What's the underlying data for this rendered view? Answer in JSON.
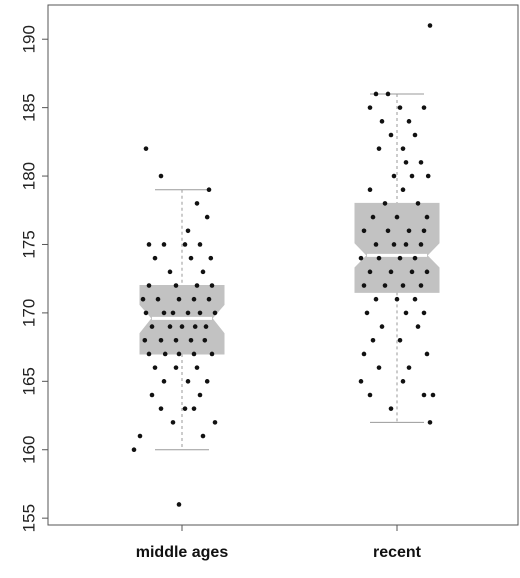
{
  "colors": {
    "box_fill": "#c2c2c2",
    "whisker": "#9a9a9a",
    "median": "#ffffff",
    "point": "#111111",
    "axis": "#555555"
  },
  "chart_data": {
    "type": "box",
    "title": "",
    "xlabel": "",
    "ylabel": "",
    "ylim": [
      154.5,
      192.5
    ],
    "yticks": [
      155,
      160,
      165,
      170,
      175,
      180,
      185,
      190
    ],
    "notched": true,
    "jittered_points_overlay": true,
    "categories": [
      "middle ages",
      "recent"
    ],
    "boxes": [
      {
        "category": "middle ages",
        "whisker_low": 160,
        "q1": 167,
        "median": 169.6,
        "q3": 172,
        "whisker_high": 179,
        "notch_low": 168.5,
        "notch_high": 170.6,
        "outliers": [
          156,
          180,
          182
        ],
        "points": [
          [
            -0.6,
            182
          ],
          [
            -0.35,
            180
          ],
          [
            0.45,
            179
          ],
          [
            0.42,
            177
          ],
          [
            0.25,
            178
          ],
          [
            0.1,
            176
          ],
          [
            -0.55,
            175
          ],
          [
            -0.3,
            175
          ],
          [
            0.05,
            175
          ],
          [
            0.3,
            175
          ],
          [
            -0.45,
            174
          ],
          [
            0.15,
            174
          ],
          [
            0.48,
            174
          ],
          [
            -0.2,
            173
          ],
          [
            0.35,
            173
          ],
          [
            -0.55,
            172
          ],
          [
            -0.1,
            172
          ],
          [
            0.25,
            172
          ],
          [
            0.5,
            172
          ],
          [
            -0.65,
            171
          ],
          [
            -0.4,
            171
          ],
          [
            -0.05,
            171
          ],
          [
            0.2,
            171
          ],
          [
            0.45,
            171
          ],
          [
            -0.6,
            170
          ],
          [
            -0.3,
            170
          ],
          [
            -0.15,
            170
          ],
          [
            0.1,
            170
          ],
          [
            0.3,
            170
          ],
          [
            0.55,
            170
          ],
          [
            -0.5,
            169
          ],
          [
            -0.2,
            169
          ],
          [
            0.0,
            169
          ],
          [
            0.22,
            169
          ],
          [
            0.4,
            169
          ],
          [
            -0.62,
            168
          ],
          [
            -0.35,
            168
          ],
          [
            -0.1,
            168
          ],
          [
            0.15,
            168
          ],
          [
            0.38,
            168
          ],
          [
            -0.55,
            167
          ],
          [
            -0.28,
            167
          ],
          [
            -0.05,
            167
          ],
          [
            0.2,
            167
          ],
          [
            0.5,
            167
          ],
          [
            -0.45,
            166
          ],
          [
            -0.1,
            166
          ],
          [
            0.25,
            166
          ],
          [
            -0.3,
            165
          ],
          [
            0.1,
            165
          ],
          [
            0.42,
            165
          ],
          [
            -0.5,
            164
          ],
          [
            0.3,
            164
          ],
          [
            -0.35,
            163
          ],
          [
            0.05,
            163
          ],
          [
            0.2,
            163
          ],
          [
            -0.15,
            162
          ],
          [
            0.55,
            162
          ],
          [
            -0.7,
            161
          ],
          [
            0.35,
            161
          ],
          [
            -0.8,
            160
          ],
          [
            -0.05,
            156
          ]
        ]
      },
      {
        "category": "recent",
        "whisker_low": 162,
        "q1": 171.5,
        "median": 174.2,
        "q3": 178,
        "whisker_high": 186,
        "notch_low": 173.3,
        "notch_high": 175.1,
        "outliers": [
          191
        ],
        "points": [
          [
            0.55,
            191
          ],
          [
            -0.35,
            186
          ],
          [
            -0.15,
            186
          ],
          [
            -0.45,
            185
          ],
          [
            0.45,
            185
          ],
          [
            0.05,
            185
          ],
          [
            -0.25,
            184
          ],
          [
            0.2,
            184
          ],
          [
            -0.1,
            183
          ],
          [
            0.3,
            183
          ],
          [
            0.1,
            182
          ],
          [
            -0.3,
            182
          ],
          [
            0.15,
            181
          ],
          [
            0.4,
            181
          ],
          [
            -0.05,
            180
          ],
          [
            0.25,
            180
          ],
          [
            0.52,
            180
          ],
          [
            -0.45,
            179
          ],
          [
            0.1,
            179
          ],
          [
            -0.2,
            178
          ],
          [
            0.35,
            178
          ],
          [
            -0.4,
            177
          ],
          [
            0.0,
            177
          ],
          [
            0.5,
            177
          ],
          [
            -0.55,
            176
          ],
          [
            -0.15,
            176
          ],
          [
            0.2,
            176
          ],
          [
            0.45,
            176
          ],
          [
            -0.35,
            175
          ],
          [
            -0.05,
            175
          ],
          [
            0.15,
            175
          ],
          [
            0.4,
            175
          ],
          [
            -0.6,
            174
          ],
          [
            -0.3,
            174
          ],
          [
            0.05,
            174
          ],
          [
            0.3,
            174
          ],
          [
            -0.45,
            173
          ],
          [
            -0.1,
            173
          ],
          [
            0.25,
            173
          ],
          [
            0.5,
            173
          ],
          [
            -0.55,
            172
          ],
          [
            -0.2,
            172
          ],
          [
            0.1,
            172
          ],
          [
            0.4,
            172
          ],
          [
            -0.35,
            171
          ],
          [
            0.0,
            171
          ],
          [
            0.3,
            171
          ],
          [
            -0.5,
            170
          ],
          [
            0.15,
            170
          ],
          [
            0.45,
            170
          ],
          [
            -0.25,
            169
          ],
          [
            0.35,
            169
          ],
          [
            -0.4,
            168
          ],
          [
            0.05,
            168
          ],
          [
            -0.55,
            167
          ],
          [
            0.5,
            167
          ],
          [
            -0.3,
            166
          ],
          [
            0.2,
            166
          ],
          [
            -0.6,
            165
          ],
          [
            0.1,
            165
          ],
          [
            -0.45,
            164
          ],
          [
            0.45,
            164
          ],
          [
            0.6,
            164
          ],
          [
            -0.1,
            163
          ],
          [
            0.55,
            162
          ]
        ]
      }
    ]
  }
}
